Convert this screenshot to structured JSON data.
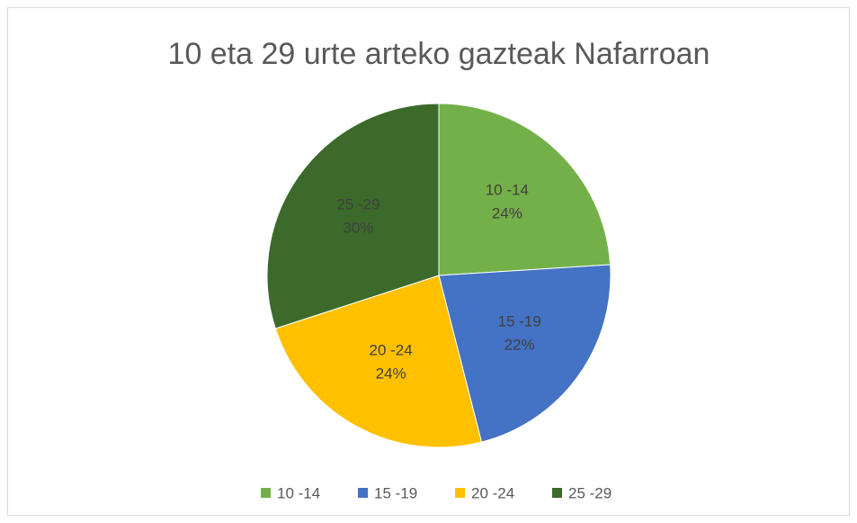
{
  "chart_data": {
    "type": "pie",
    "title": "10 eta 29 urte arteko gazteak Nafarroan",
    "categories": [
      "10 -14",
      "15 -19",
      "20 -24",
      "25 -29"
    ],
    "values": [
      24,
      22,
      24,
      30
    ],
    "value_labels": [
      "24%",
      "22%",
      "24%",
      "30%"
    ],
    "colors": [
      "#74b049",
      "#4472c4",
      "#ffc000",
      "#3b6a2a"
    ],
    "legend": "bottom"
  }
}
